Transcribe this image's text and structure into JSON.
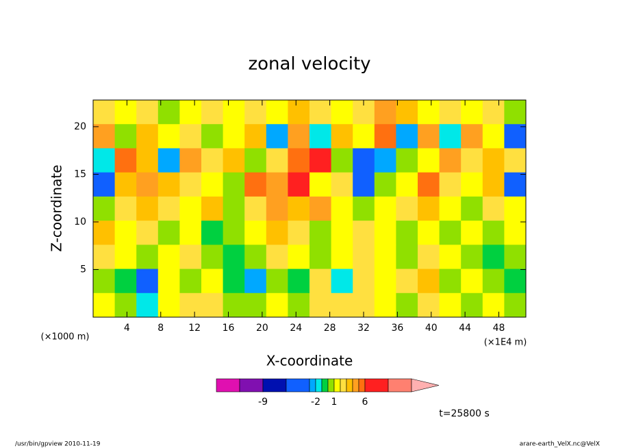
{
  "chart_data": {
    "type": "contour",
    "title": "zonal velocity",
    "x_label": "X-coordinate",
    "y_label": "Z-coordinate",
    "y_unit": "(×1000 m)",
    "x_unit": "(×1E4 m)",
    "time_label": "t=25800 s",
    "footer_left": "/usr/bin/gpview  2010-11-19",
    "footer_right": "arare-earth_VelX.nc@VelX",
    "xlim": [
      0,
      51.2
    ],
    "ylim": [
      0,
      22.8
    ],
    "xticks": [
      4,
      8,
      12,
      16,
      20,
      24,
      28,
      32,
      36,
      40,
      44,
      48
    ],
    "yticks": [
      5,
      10,
      15,
      20
    ],
    "levels": [
      -15,
      -12,
      -9,
      -6,
      -3,
      -2,
      -1,
      0,
      1,
      2,
      3,
      4,
      5,
      6,
      9,
      12
    ],
    "colors": [
      "#e010b0",
      "#8010b0",
      "#0010b0",
      "#1060ff",
      "#00a8ff",
      "#00e8e8",
      "#00d040",
      "#90e000",
      "#ffff00",
      "#ffe040",
      "#ffc000",
      "#ffa020",
      "#ff7010",
      "#ff2020",
      "#ff8070"
    ],
    "over_color": "#ffb0b0",
    "colorbar_ticks": [
      -9,
      -2,
      1,
      6
    ],
    "z": [
      [
        2,
        1,
        2,
        0,
        1,
        2,
        1,
        2,
        1,
        3,
        2,
        1,
        2,
        4,
        3,
        1,
        2,
        1,
        2,
        0
      ],
      [
        4,
        0,
        3,
        1,
        2,
        0,
        1,
        3,
        -3,
        4,
        -2,
        3,
        1,
        5,
        -3,
        4,
        -2,
        4,
        1,
        -4
      ],
      [
        -2,
        5,
        3,
        -3,
        4,
        2,
        3,
        0,
        2,
        5,
        6,
        0,
        -4,
        -3,
        0,
        1,
        4,
        2,
        3,
        2
      ],
      [
        -5,
        3,
        4,
        3,
        2,
        1,
        0,
        5,
        4,
        6,
        1,
        2,
        -5,
        0,
        1,
        5,
        2,
        1,
        3,
        -5
      ],
      [
        0,
        2,
        3,
        2,
        1,
        3,
        0,
        2,
        4,
        3,
        4,
        1,
        0,
        1,
        2,
        3,
        1,
        0,
        2,
        1
      ],
      [
        3,
        1,
        2,
        0,
        1,
        -1,
        0,
        1,
        3,
        2,
        0,
        1,
        2,
        1,
        0,
        1,
        0,
        1,
        0,
        1
      ],
      [
        2,
        1,
        0,
        1,
        2,
        0,
        -1,
        0,
        2,
        1,
        0,
        1,
        2,
        1,
        0,
        2,
        1,
        0,
        -1,
        0
      ],
      [
        0,
        -1,
        -5,
        1,
        0,
        1,
        -1,
        -3,
        0,
        -1,
        2,
        -2,
        2,
        1,
        2,
        3,
        0,
        1,
        0,
        -1
      ],
      [
        1,
        0,
        -2,
        1,
        2,
        2,
        0,
        0,
        1,
        0,
        2,
        2,
        2,
        1,
        0,
        2,
        1,
        0,
        1,
        0
      ]
    ]
  }
}
